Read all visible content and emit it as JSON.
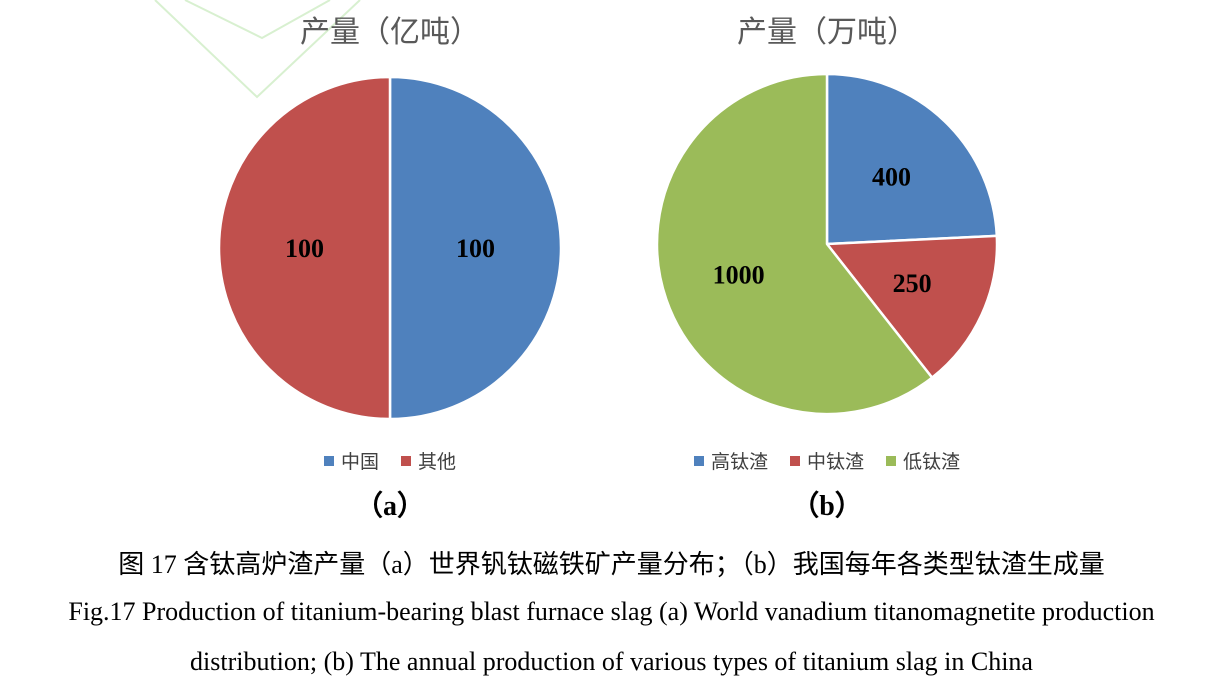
{
  "chart_data": [
    {
      "type": "pie",
      "title": "产量（亿吨）",
      "panel_label": "（a）",
      "legend_position": "bottom",
      "categories": [
        "中国",
        "其他"
      ],
      "values": [
        100,
        100
      ],
      "colors": [
        "#4f81bd",
        "#c0504d"
      ]
    },
    {
      "type": "pie",
      "title": "产量（万吨）",
      "panel_label": "（b）",
      "legend_position": "bottom",
      "categories": [
        "高钛渣",
        "中钛渣",
        "低钛渣"
      ],
      "values": [
        400,
        250,
        1000
      ],
      "colors": [
        "#4f81bd",
        "#c0504d",
        "#9bbb59"
      ]
    }
  ],
  "caption": {
    "chinese": "图 17  含钛高炉渣产量（a）世界钒钛磁铁矿产量分布；（b）我国每年各类型钛渣生成量",
    "english_line1": "Fig.17 Production of titanium-bearing blast furnace slag (a) World vanadium titanomagnetite production",
    "english_line2": "distribution; (b) The annual production of various types of titanium slag in China"
  }
}
